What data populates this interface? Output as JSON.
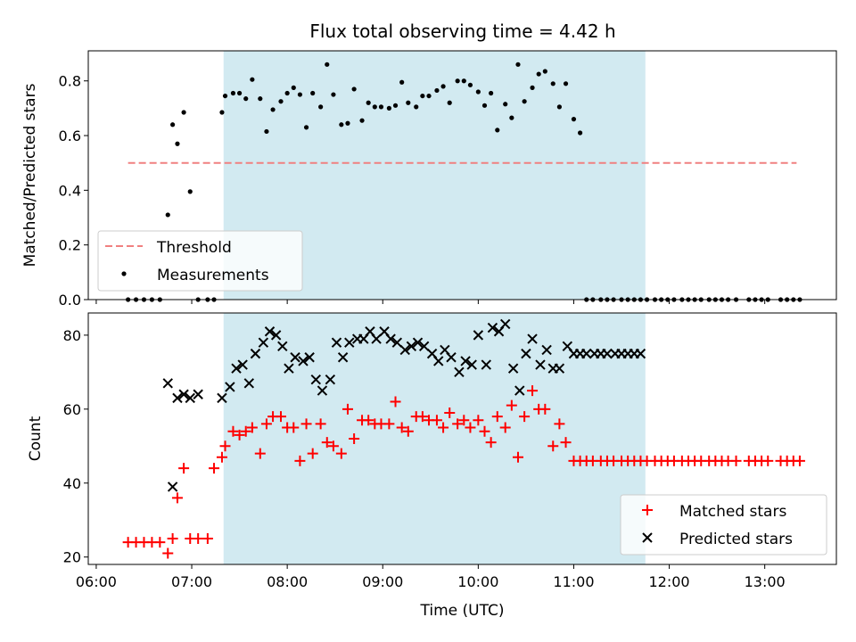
{
  "chart_data": [
    {
      "type": "scatter",
      "title": "Flux total observing time = 4.42 h",
      "xlabel": "",
      "ylabel": "Matched/Predicted stars",
      "ylim": [
        0,
        0.91
      ],
      "yticks": [
        "0.0",
        "0.2",
        "0.4",
        "0.6",
        "0.8"
      ],
      "xlim": [
        "05:55",
        "13:45"
      ],
      "shaded_span": [
        "07:20",
        "11:45"
      ],
      "shade_color": "#add8e6",
      "threshold": {
        "name": "Threshold",
        "y": 0.5,
        "x": [
          "06:20",
          "13:20"
        ],
        "color": "#f08080",
        "style": "dashed"
      },
      "legend": {
        "position": "lower-left",
        "entries": [
          "Threshold",
          "Measurements"
        ]
      },
      "series": [
        {
          "name": "Measurements",
          "color": "#000000",
          "x": [
            "06:20",
            "06:25",
            "06:30",
            "06:35",
            "06:40",
            "06:45",
            "06:48",
            "06:51",
            "06:55",
            "06:59",
            "07:04",
            "07:10",
            "07:14",
            "07:19",
            "07:21",
            "07:26",
            "07:30",
            "07:34",
            "07:38",
            "07:43",
            "07:47",
            "07:51",
            "07:56",
            "08:00",
            "08:04",
            "08:08",
            "08:12",
            "08:16",
            "08:21",
            "08:25",
            "08:29",
            "08:34",
            "08:38",
            "08:42",
            "08:47",
            "08:51",
            "08:55",
            "08:59",
            "09:04",
            "09:08",
            "09:12",
            "09:16",
            "09:21",
            "09:25",
            "09:29",
            "09:34",
            "09:38",
            "09:42",
            "09:47",
            "09:51",
            "09:55",
            "10:00",
            "10:04",
            "10:08",
            "10:12",
            "10:17",
            "10:21",
            "10:25",
            "10:29",
            "10:34",
            "10:38",
            "10:42",
            "10:47",
            "10:51",
            "10:55",
            "11:00",
            "11:04",
            "11:08",
            "11:12",
            "11:17",
            "11:21",
            "11:25",
            "11:30",
            "11:34",
            "11:38",
            "11:42",
            "11:46",
            "11:51",
            "11:55",
            "11:59",
            "12:03",
            "12:08",
            "12:12",
            "12:16",
            "12:20",
            "12:25",
            "12:29",
            "12:33",
            "12:37",
            "12:42",
            "12:50",
            "12:54",
            "12:58",
            "13:02",
            "13:10",
            "13:14",
            "13:18",
            "13:22"
          ],
          "y": [
            0,
            0,
            0,
            0,
            0,
            0.31,
            0.64,
            0.57,
            0.685,
            0.395,
            0,
            0,
            0,
            0.685,
            0.745,
            0.755,
            0.755,
            0.735,
            0.805,
            0.735,
            0.615,
            0.695,
            0.725,
            0.755,
            0.775,
            0.75,
            0.63,
            0.755,
            0.705,
            0.86,
            0.75,
            0.64,
            0.645,
            0.77,
            0.655,
            0.72,
            0.705,
            0.705,
            0.7,
            0.71,
            0.795,
            0.72,
            0.705,
            0.745,
            0.745,
            0.765,
            0.78,
            0.72,
            0.8,
            0.8,
            0.785,
            0.76,
            0.71,
            0.755,
            0.62,
            0.715,
            0.665,
            0.86,
            0.725,
            0.775,
            0.825,
            0.835,
            0.79,
            0.705,
            0.79,
            0.66,
            0.61,
            0,
            0,
            0,
            0,
            0,
            0,
            0,
            0,
            0,
            0,
            0,
            0,
            0,
            0,
            0,
            0,
            0,
            0,
            0,
            0,
            0,
            0,
            0,
            0,
            0,
            0,
            0,
            0,
            0,
            0,
            0
          ]
        }
      ]
    },
    {
      "type": "scatter",
      "title": "",
      "xlabel": "Time (UTC)",
      "ylabel": "Count",
      "ylim": [
        18,
        86
      ],
      "yticks": [
        "20",
        "40",
        "60",
        "80"
      ],
      "xticks": [
        "06:00",
        "07:00",
        "08:00",
        "09:00",
        "10:00",
        "11:00",
        "12:00",
        "13:00"
      ],
      "xlim": [
        "05:55",
        "13:45"
      ],
      "shaded_span": [
        "07:20",
        "11:45"
      ],
      "shade_color": "#add8e6",
      "legend": {
        "position": "lower-right",
        "entries": [
          "Matched stars",
          "Predicted stars"
        ]
      },
      "series": [
        {
          "name": "Matched stars",
          "marker": "plus",
          "color": "#ff0000",
          "x": [
            "06:20",
            "06:25",
            "06:30",
            "06:35",
            "06:40",
            "06:45",
            "06:48",
            "06:51",
            "06:55",
            "06:59",
            "07:04",
            "07:10",
            "07:14",
            "07:19",
            "07:21",
            "07:26",
            "07:30",
            "07:34",
            "07:38",
            "07:43",
            "07:47",
            "07:51",
            "07:56",
            "08:00",
            "08:04",
            "08:08",
            "08:12",
            "08:16",
            "08:21",
            "08:25",
            "08:29",
            "08:34",
            "08:38",
            "08:42",
            "08:47",
            "08:51",
            "08:55",
            "08:59",
            "09:04",
            "09:08",
            "09:12",
            "09:16",
            "09:21",
            "09:25",
            "09:29",
            "09:34",
            "09:38",
            "09:42",
            "09:47",
            "09:51",
            "09:55",
            "10:00",
            "10:04",
            "10:08",
            "10:12",
            "10:17",
            "10:21",
            "10:25",
            "10:29",
            "10:34",
            "10:38",
            "10:42",
            "10:47",
            "10:51",
            "10:55",
            "11:00",
            "11:04",
            "11:08",
            "11:12",
            "11:17",
            "11:21",
            "11:25",
            "11:30",
            "11:34",
            "11:38",
            "11:42",
            "11:46",
            "11:51",
            "11:55",
            "11:59",
            "12:03",
            "12:08",
            "12:12",
            "12:16",
            "12:20",
            "12:25",
            "12:29",
            "12:33",
            "12:37",
            "12:42",
            "12:50",
            "12:54",
            "12:58",
            "13:02",
            "13:10",
            "13:14",
            "13:18",
            "13:22"
          ],
          "y": [
            24,
            24,
            24,
            24,
            24,
            21,
            25,
            36,
            44,
            25,
            25,
            25,
            44,
            47,
            50,
            54,
            53,
            54,
            55,
            48,
            56,
            58,
            58,
            55,
            55,
            46,
            56,
            48,
            56,
            51,
            50,
            48,
            60,
            52,
            57,
            57,
            56,
            56,
            56,
            62,
            55,
            54,
            58,
            58,
            57,
            57,
            55,
            59,
            56,
            57,
            55,
            57,
            54,
            51,
            58,
            55,
            61,
            47,
            58,
            65,
            60,
            60,
            50,
            56,
            51,
            46,
            46,
            46,
            46,
            46,
            46,
            46,
            46,
            46,
            46,
            46,
            46,
            46,
            46,
            46,
            46,
            46,
            46,
            46,
            46,
            46,
            46,
            46,
            46,
            46,
            46,
            46,
            46,
            46,
            46,
            46,
            46,
            46
          ]
        },
        {
          "name": "Predicted stars",
          "marker": "x",
          "color": "#000000",
          "x": [
            "06:45",
            "06:48",
            "06:51",
            "06:55",
            "06:59",
            "07:04",
            "07:19",
            "07:24",
            "07:28",
            "07:32",
            "07:36",
            "07:40",
            "07:45",
            "07:49",
            "07:53",
            "07:57",
            "08:01",
            "08:05",
            "08:10",
            "08:14",
            "08:18",
            "08:22",
            "08:27",
            "08:31",
            "08:35",
            "08:39",
            "08:44",
            "08:48",
            "08:52",
            "08:56",
            "09:01",
            "09:05",
            "09:09",
            "09:14",
            "09:18",
            "09:22",
            "09:26",
            "09:31",
            "09:35",
            "09:39",
            "09:43",
            "09:48",
            "09:52",
            "09:56",
            "10:00",
            "10:05",
            "10:09",
            "10:13",
            "10:17",
            "10:22",
            "10:26",
            "10:30",
            "10:34",
            "10:39",
            "10:43",
            "10:47",
            "10:51",
            "10:56",
            "11:00",
            "11:04",
            "11:08",
            "11:13",
            "11:17",
            "11:21",
            "11:26",
            "11:30",
            "11:34",
            "11:38",
            "11:42"
          ],
          "y": [
            67,
            39,
            63,
            64,
            63,
            64,
            63,
            66,
            71,
            72,
            67,
            75,
            78,
            81,
            80,
            77,
            71,
            74,
            73,
            74,
            68,
            65,
            68,
            78,
            74,
            78,
            79,
            79,
            81,
            79,
            81,
            79,
            78,
            76,
            77,
            78,
            77,
            75,
            73,
            76,
            74,
            70,
            73,
            72,
            80,
            72,
            82,
            81,
            83,
            71,
            65,
            75,
            79,
            72,
            76,
            71,
            71,
            77,
            75,
            75,
            75,
            75,
            75,
            75,
            75,
            75,
            75,
            75,
            75
          ]
        }
      ]
    }
  ]
}
